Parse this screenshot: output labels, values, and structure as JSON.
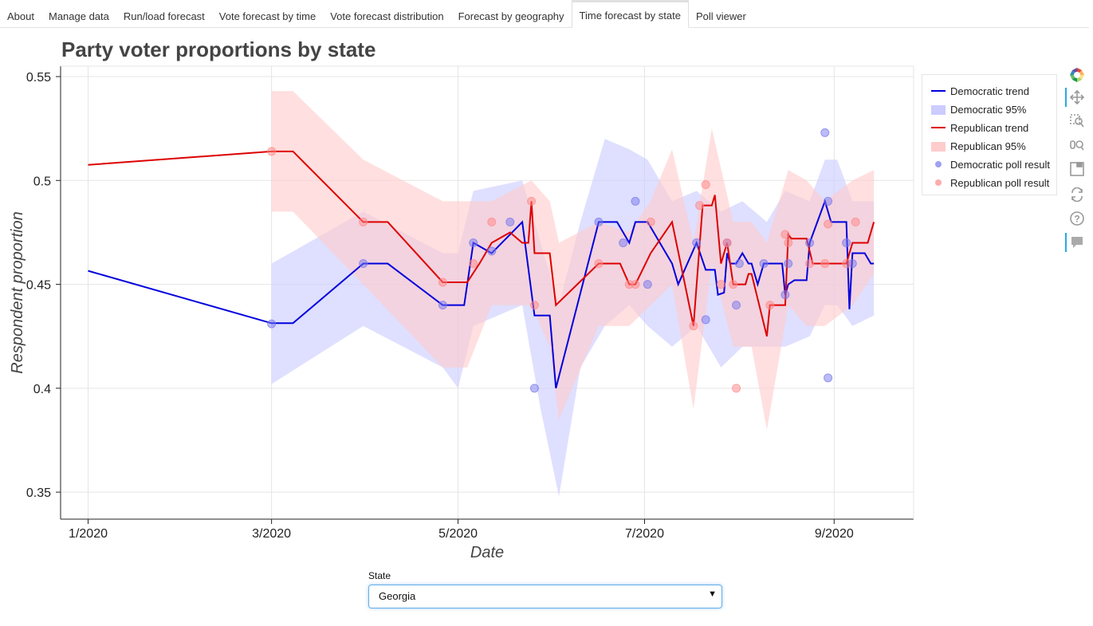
{
  "tabs": [
    {
      "label": "About",
      "active": false
    },
    {
      "label": "Manage data",
      "active": false
    },
    {
      "label": "Run/load forecast",
      "active": false
    },
    {
      "label": "Vote forecast by time",
      "active": false
    },
    {
      "label": "Vote forecast distribution",
      "active": false
    },
    {
      "label": "Forecast by geography",
      "active": false
    },
    {
      "label": "Time forecast by state",
      "active": true
    },
    {
      "label": "Poll viewer",
      "active": false
    }
  ],
  "legend": {
    "items": [
      {
        "label": "Democratic trend",
        "glyph": "line",
        "color": "#0000dd"
      },
      {
        "label": "Democratic 95%",
        "glyph": "area",
        "color": "#ccccff"
      },
      {
        "label": "Republican trend",
        "glyph": "line",
        "color": "#dd0000"
      },
      {
        "label": "Republican 95%",
        "glyph": "area",
        "color": "#ffcccc"
      },
      {
        "label": "Democratic poll result",
        "glyph": "circle",
        "color": "#7777ee"
      },
      {
        "label": "Republican poll result",
        "glyph": "circle",
        "color": "#ff8888"
      }
    ]
  },
  "toolbar": {
    "tools": [
      "bokeh-logo-icon",
      "pan-icon",
      "box-zoom-icon",
      "wheel-zoom-icon",
      "save-icon",
      "reset-icon",
      "help-icon",
      "hover-icon"
    ]
  },
  "controls": {
    "state_label": "State",
    "state_value": "Georgia"
  },
  "chart_data": {
    "type": "line",
    "title": "Party voter proportions by state",
    "xlabel": "Date",
    "ylabel": "Respondent proportion",
    "x_ticks": [
      {
        "date": "2020-01-01",
        "label": "1/2020"
      },
      {
        "date": "2020-03-01",
        "label": "3/2020"
      },
      {
        "date": "2020-05-01",
        "label": "5/2020"
      },
      {
        "date": "2020-07-01",
        "label": "7/2020"
      },
      {
        "date": "2020-09-01",
        "label": "9/2020"
      }
    ],
    "xlim": [
      "2019-12-23",
      "2020-09-27"
    ],
    "y_ticks": [
      0.35,
      0.4,
      0.45,
      0.5,
      0.55
    ],
    "ylim": [
      0.337,
      0.555
    ],
    "grid": true,
    "legend_position": "right",
    "colors": {
      "dem_line": "#0000dd",
      "rep_line": "#dd0000",
      "dem_band": "#ccccff",
      "rep_band": "#ffcccc",
      "dem_point": "#7777ee",
      "rep_point": "#ff8888"
    },
    "series": [
      {
        "name": "Democratic trend",
        "points": [
          [
            "2020-01-01",
            0.4565
          ],
          [
            "2020-03-01",
            0.4313
          ],
          [
            "2020-03-08",
            0.4313
          ],
          [
            "2020-03-31",
            0.46
          ],
          [
            "2020-04-08",
            0.46
          ],
          [
            "2020-04-26",
            0.44
          ],
          [
            "2020-05-03",
            0.44
          ],
          [
            "2020-05-06",
            0.47
          ],
          [
            "2020-05-12",
            0.465
          ],
          [
            "2020-05-22",
            0.48
          ],
          [
            "2020-05-26",
            0.435
          ],
          [
            "2020-05-31",
            0.435
          ],
          [
            "2020-06-02",
            0.4
          ],
          [
            "2020-06-16",
            0.48
          ],
          [
            "2020-06-22",
            0.48
          ],
          [
            "2020-06-26",
            0.47
          ],
          [
            "2020-06-28",
            0.48
          ],
          [
            "2020-07-02",
            0.48
          ],
          [
            "2020-07-08",
            0.465
          ],
          [
            "2020-07-10",
            0.46
          ],
          [
            "2020-07-12",
            0.45
          ],
          [
            "2020-07-18",
            0.47
          ],
          [
            "2020-07-21",
            0.457
          ],
          [
            "2020-07-24",
            0.457
          ],
          [
            "2020-07-25",
            0.445
          ],
          [
            "2020-07-27",
            0.446
          ],
          [
            "2020-07-28",
            0.465
          ],
          [
            "2020-07-29",
            0.46
          ],
          [
            "2020-07-31",
            0.46
          ],
          [
            "2020-08-02",
            0.465
          ],
          [
            "2020-08-04",
            0.46
          ],
          [
            "2020-08-05",
            0.46
          ],
          [
            "2020-08-07",
            0.45
          ],
          [
            "2020-08-09",
            0.46
          ],
          [
            "2020-08-15",
            0.46
          ],
          [
            "2020-08-16",
            0.445
          ],
          [
            "2020-08-17",
            0.45
          ],
          [
            "2020-08-19",
            0.452
          ],
          [
            "2020-08-23",
            0.452
          ],
          [
            "2020-08-24",
            0.47
          ],
          [
            "2020-08-29",
            0.49
          ],
          [
            "2020-08-31",
            0.48
          ],
          [
            "2020-09-05",
            0.48
          ],
          [
            "2020-09-06",
            0.438
          ],
          [
            "2020-09-07",
            0.465
          ],
          [
            "2020-09-11",
            0.465
          ],
          [
            "2020-09-13",
            0.46
          ],
          [
            "2020-09-14",
            0.46
          ]
        ]
      },
      {
        "name": "Republican trend",
        "points": [
          [
            "2020-01-01",
            0.5075
          ],
          [
            "2020-03-01",
            0.514
          ],
          [
            "2020-03-08",
            0.514
          ],
          [
            "2020-03-31",
            0.48
          ],
          [
            "2020-04-08",
            0.48
          ],
          [
            "2020-04-26",
            0.451
          ],
          [
            "2020-05-04",
            0.451
          ],
          [
            "2020-05-08",
            0.46
          ],
          [
            "2020-05-12",
            0.47
          ],
          [
            "2020-05-18",
            0.475
          ],
          [
            "2020-05-22",
            0.47
          ],
          [
            "2020-05-24",
            0.47
          ],
          [
            "2020-05-25",
            0.49
          ],
          [
            "2020-05-26",
            0.465
          ],
          [
            "2020-05-31",
            0.465
          ],
          [
            "2020-06-02",
            0.44
          ],
          [
            "2020-06-16",
            0.46
          ],
          [
            "2020-06-23",
            0.46
          ],
          [
            "2020-06-26",
            0.45
          ],
          [
            "2020-06-28",
            0.45
          ],
          [
            "2020-07-03",
            0.465
          ],
          [
            "2020-07-10",
            0.48
          ],
          [
            "2020-07-17",
            0.43
          ],
          [
            "2020-07-20",
            0.488
          ],
          [
            "2020-07-23",
            0.488
          ],
          [
            "2020-07-24",
            0.493
          ],
          [
            "2020-07-26",
            0.46
          ],
          [
            "2020-07-28",
            0.47
          ],
          [
            "2020-07-30",
            0.45
          ],
          [
            "2020-08-03",
            0.45
          ],
          [
            "2020-08-04",
            0.455
          ],
          [
            "2020-08-05",
            0.455
          ],
          [
            "2020-08-10",
            0.425
          ],
          [
            "2020-08-11",
            0.44
          ],
          [
            "2020-08-16",
            0.44
          ],
          [
            "2020-08-17",
            0.474
          ],
          [
            "2020-08-18",
            0.472
          ],
          [
            "2020-08-23",
            0.472
          ],
          [
            "2020-08-25",
            0.46
          ],
          [
            "2020-08-29",
            0.46
          ],
          [
            "2020-09-02",
            0.46
          ],
          [
            "2020-09-05",
            0.46
          ],
          [
            "2020-09-07",
            0.47
          ],
          [
            "2020-09-12",
            0.47
          ],
          [
            "2020-09-14",
            0.48
          ]
        ]
      }
    ],
    "bands": [
      {
        "name": "Democratic 95%",
        "color": "#ccccff",
        "points": [
          [
            "2020-03-01",
            0.46,
            0.402
          ],
          [
            "2020-03-31",
            0.485,
            0.43
          ],
          [
            "2020-04-26",
            0.465,
            0.41
          ],
          [
            "2020-05-01",
            0.465,
            0.4
          ],
          [
            "2020-05-06",
            0.495,
            0.43
          ],
          [
            "2020-05-22",
            0.5,
            0.44
          ],
          [
            "2020-05-28",
            0.47,
            0.39
          ],
          [
            "2020-06-03",
            0.44,
            0.348
          ],
          [
            "2020-06-10",
            0.48,
            0.41
          ],
          [
            "2020-06-18",
            0.52,
            0.43
          ],
          [
            "2020-06-26",
            0.515,
            0.44
          ],
          [
            "2020-07-02",
            0.51,
            0.43
          ],
          [
            "2020-07-10",
            0.49,
            0.42
          ],
          [
            "2020-07-18",
            0.495,
            0.43
          ],
          [
            "2020-07-26",
            0.485,
            0.41
          ],
          [
            "2020-08-02",
            0.49,
            0.42
          ],
          [
            "2020-08-10",
            0.48,
            0.42
          ],
          [
            "2020-08-16",
            0.495,
            0.42
          ],
          [
            "2020-08-24",
            0.49,
            0.425
          ],
          [
            "2020-08-29",
            0.51,
            0.44
          ],
          [
            "2020-09-02",
            0.51,
            0.44
          ],
          [
            "2020-09-07",
            0.49,
            0.43
          ],
          [
            "2020-09-14",
            0.49,
            0.435
          ]
        ]
      },
      {
        "name": "Republican 95%",
        "color": "#ffcccc",
        "points": [
          [
            "2020-03-01",
            0.543,
            0.485
          ],
          [
            "2020-03-08",
            0.543,
            0.485
          ],
          [
            "2020-03-31",
            0.51,
            0.45
          ],
          [
            "2020-04-26",
            0.49,
            0.41
          ],
          [
            "2020-05-04",
            0.49,
            0.41
          ],
          [
            "2020-05-12",
            0.49,
            0.44
          ],
          [
            "2020-05-25",
            0.5,
            0.44
          ],
          [
            "2020-05-31",
            0.49,
            0.42
          ],
          [
            "2020-06-03",
            0.47,
            0.385
          ],
          [
            "2020-06-16",
            0.48,
            0.43
          ],
          [
            "2020-06-26",
            0.475,
            0.43
          ],
          [
            "2020-07-03",
            0.49,
            0.44
          ],
          [
            "2020-07-10",
            0.515,
            0.45
          ],
          [
            "2020-07-17",
            0.47,
            0.39
          ],
          [
            "2020-07-23",
            0.525,
            0.46
          ],
          [
            "2020-07-30",
            0.48,
            0.42
          ],
          [
            "2020-08-05",
            0.48,
            0.42
          ],
          [
            "2020-08-10",
            0.47,
            0.38
          ],
          [
            "2020-08-17",
            0.505,
            0.44
          ],
          [
            "2020-08-23",
            0.5,
            0.43
          ],
          [
            "2020-08-29",
            0.49,
            0.43
          ],
          [
            "2020-09-07",
            0.5,
            0.44
          ],
          [
            "2020-09-14",
            0.505,
            0.455
          ]
        ]
      }
    ],
    "polls": [
      {
        "name": "Democratic poll result",
        "color": "#7777ee",
        "points": [
          [
            "2020-03-01",
            0.431
          ],
          [
            "2020-03-31",
            0.46
          ],
          [
            "2020-04-26",
            0.44
          ],
          [
            "2020-05-06",
            0.47
          ],
          [
            "2020-05-12",
            0.466
          ],
          [
            "2020-05-18",
            0.48
          ],
          [
            "2020-05-26",
            0.4
          ],
          [
            "2020-06-16",
            0.48
          ],
          [
            "2020-06-24",
            0.47
          ],
          [
            "2020-06-28",
            0.49
          ],
          [
            "2020-07-02",
            0.45
          ],
          [
            "2020-07-18",
            0.47
          ],
          [
            "2020-07-21",
            0.433
          ],
          [
            "2020-07-28",
            0.47
          ],
          [
            "2020-07-31",
            0.44
          ],
          [
            "2020-08-01",
            0.46
          ],
          [
            "2020-08-09",
            0.46
          ],
          [
            "2020-08-16",
            0.445
          ],
          [
            "2020-08-17",
            0.46
          ],
          [
            "2020-08-24",
            0.47
          ],
          [
            "2020-08-29",
            0.523
          ],
          [
            "2020-08-30",
            0.405
          ],
          [
            "2020-08-30",
            0.49
          ],
          [
            "2020-09-05",
            0.47
          ],
          [
            "2020-09-07",
            0.46
          ]
        ]
      },
      {
        "name": "Republican poll result",
        "color": "#ff8888",
        "points": [
          [
            "2020-03-01",
            0.514
          ],
          [
            "2020-03-31",
            0.48
          ],
          [
            "2020-04-26",
            0.451
          ],
          [
            "2020-05-06",
            0.46
          ],
          [
            "2020-05-12",
            0.48
          ],
          [
            "2020-05-25",
            0.49
          ],
          [
            "2020-05-26",
            0.44
          ],
          [
            "2020-06-16",
            0.46
          ],
          [
            "2020-06-26",
            0.45
          ],
          [
            "2020-06-28",
            0.45
          ],
          [
            "2020-07-03",
            0.48
          ],
          [
            "2020-07-17",
            0.43
          ],
          [
            "2020-07-19",
            0.488
          ],
          [
            "2020-07-21",
            0.498
          ],
          [
            "2020-07-26",
            0.45
          ],
          [
            "2020-07-28",
            0.47
          ],
          [
            "2020-07-30",
            0.45
          ],
          [
            "2020-07-31",
            0.4
          ],
          [
            "2020-08-11",
            0.44
          ],
          [
            "2020-08-16",
            0.474
          ],
          [
            "2020-08-17",
            0.47
          ],
          [
            "2020-08-24",
            0.46
          ],
          [
            "2020-08-29",
            0.46
          ],
          [
            "2020-08-30",
            0.479
          ],
          [
            "2020-09-05",
            0.46
          ],
          [
            "2020-09-08",
            0.48
          ]
        ]
      }
    ]
  }
}
